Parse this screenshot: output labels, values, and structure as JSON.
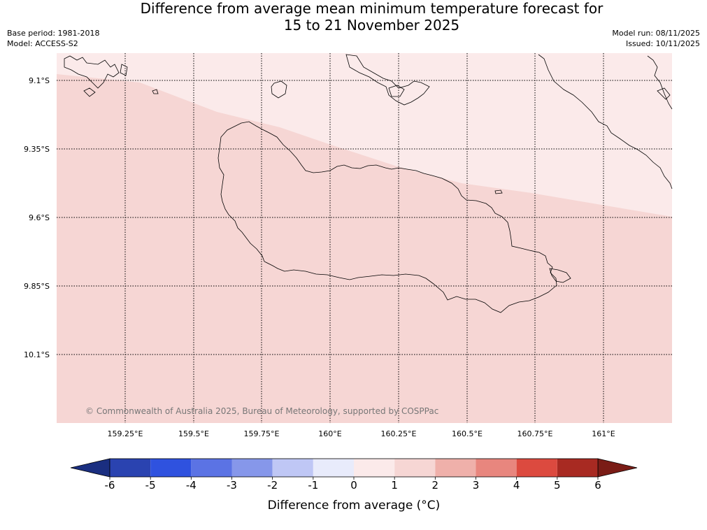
{
  "title_line1": "Difference from average mean minimum temperature forecast for",
  "title_line2": "15 to 21 November 2025",
  "meta_left": [
    "Base period: 1981-2018",
    "Model: ACCESS-S2"
  ],
  "meta_right": [
    "Model run: 08/11/2025",
    "Issued: 10/11/2025"
  ],
  "copyright": "© Commonwealth of Australia 2025, Bureau of Meteorology, supported by COSPPac",
  "lat_labels": [
    "9.1°S",
    "9.35°S",
    "9.6°S",
    "9.85°S",
    "10.1°S"
  ],
  "lon_labels": [
    "159.25°E",
    "159.5°E",
    "159.75°E",
    "160°E",
    "160.25°E",
    "160.5°E",
    "160.75°E",
    "161°E"
  ],
  "map_fill_colors": {
    "anomaly_1_to_2": "#f6d6d4",
    "anomaly_0_to_1": "#fbeaea"
  },
  "colorbar": {
    "title": "Difference from average (°C)",
    "ticks": [
      "-6",
      "-5",
      "-4",
      "-3",
      "-2",
      "-1",
      "0",
      "1",
      "2",
      "3",
      "4",
      "5",
      "6"
    ],
    "under_color": "#1a2e80",
    "over_color": "#7a1c16",
    "bins": [
      "#2a43b0",
      "#2f52df",
      "#5b73e4",
      "#8697ea",
      "#bfc7f5",
      "#e8ebfb",
      "#fbeaea",
      "#f6d6d4",
      "#efb0aa",
      "#e8867e",
      "#dc4a3f",
      "#a82a22"
    ]
  }
}
